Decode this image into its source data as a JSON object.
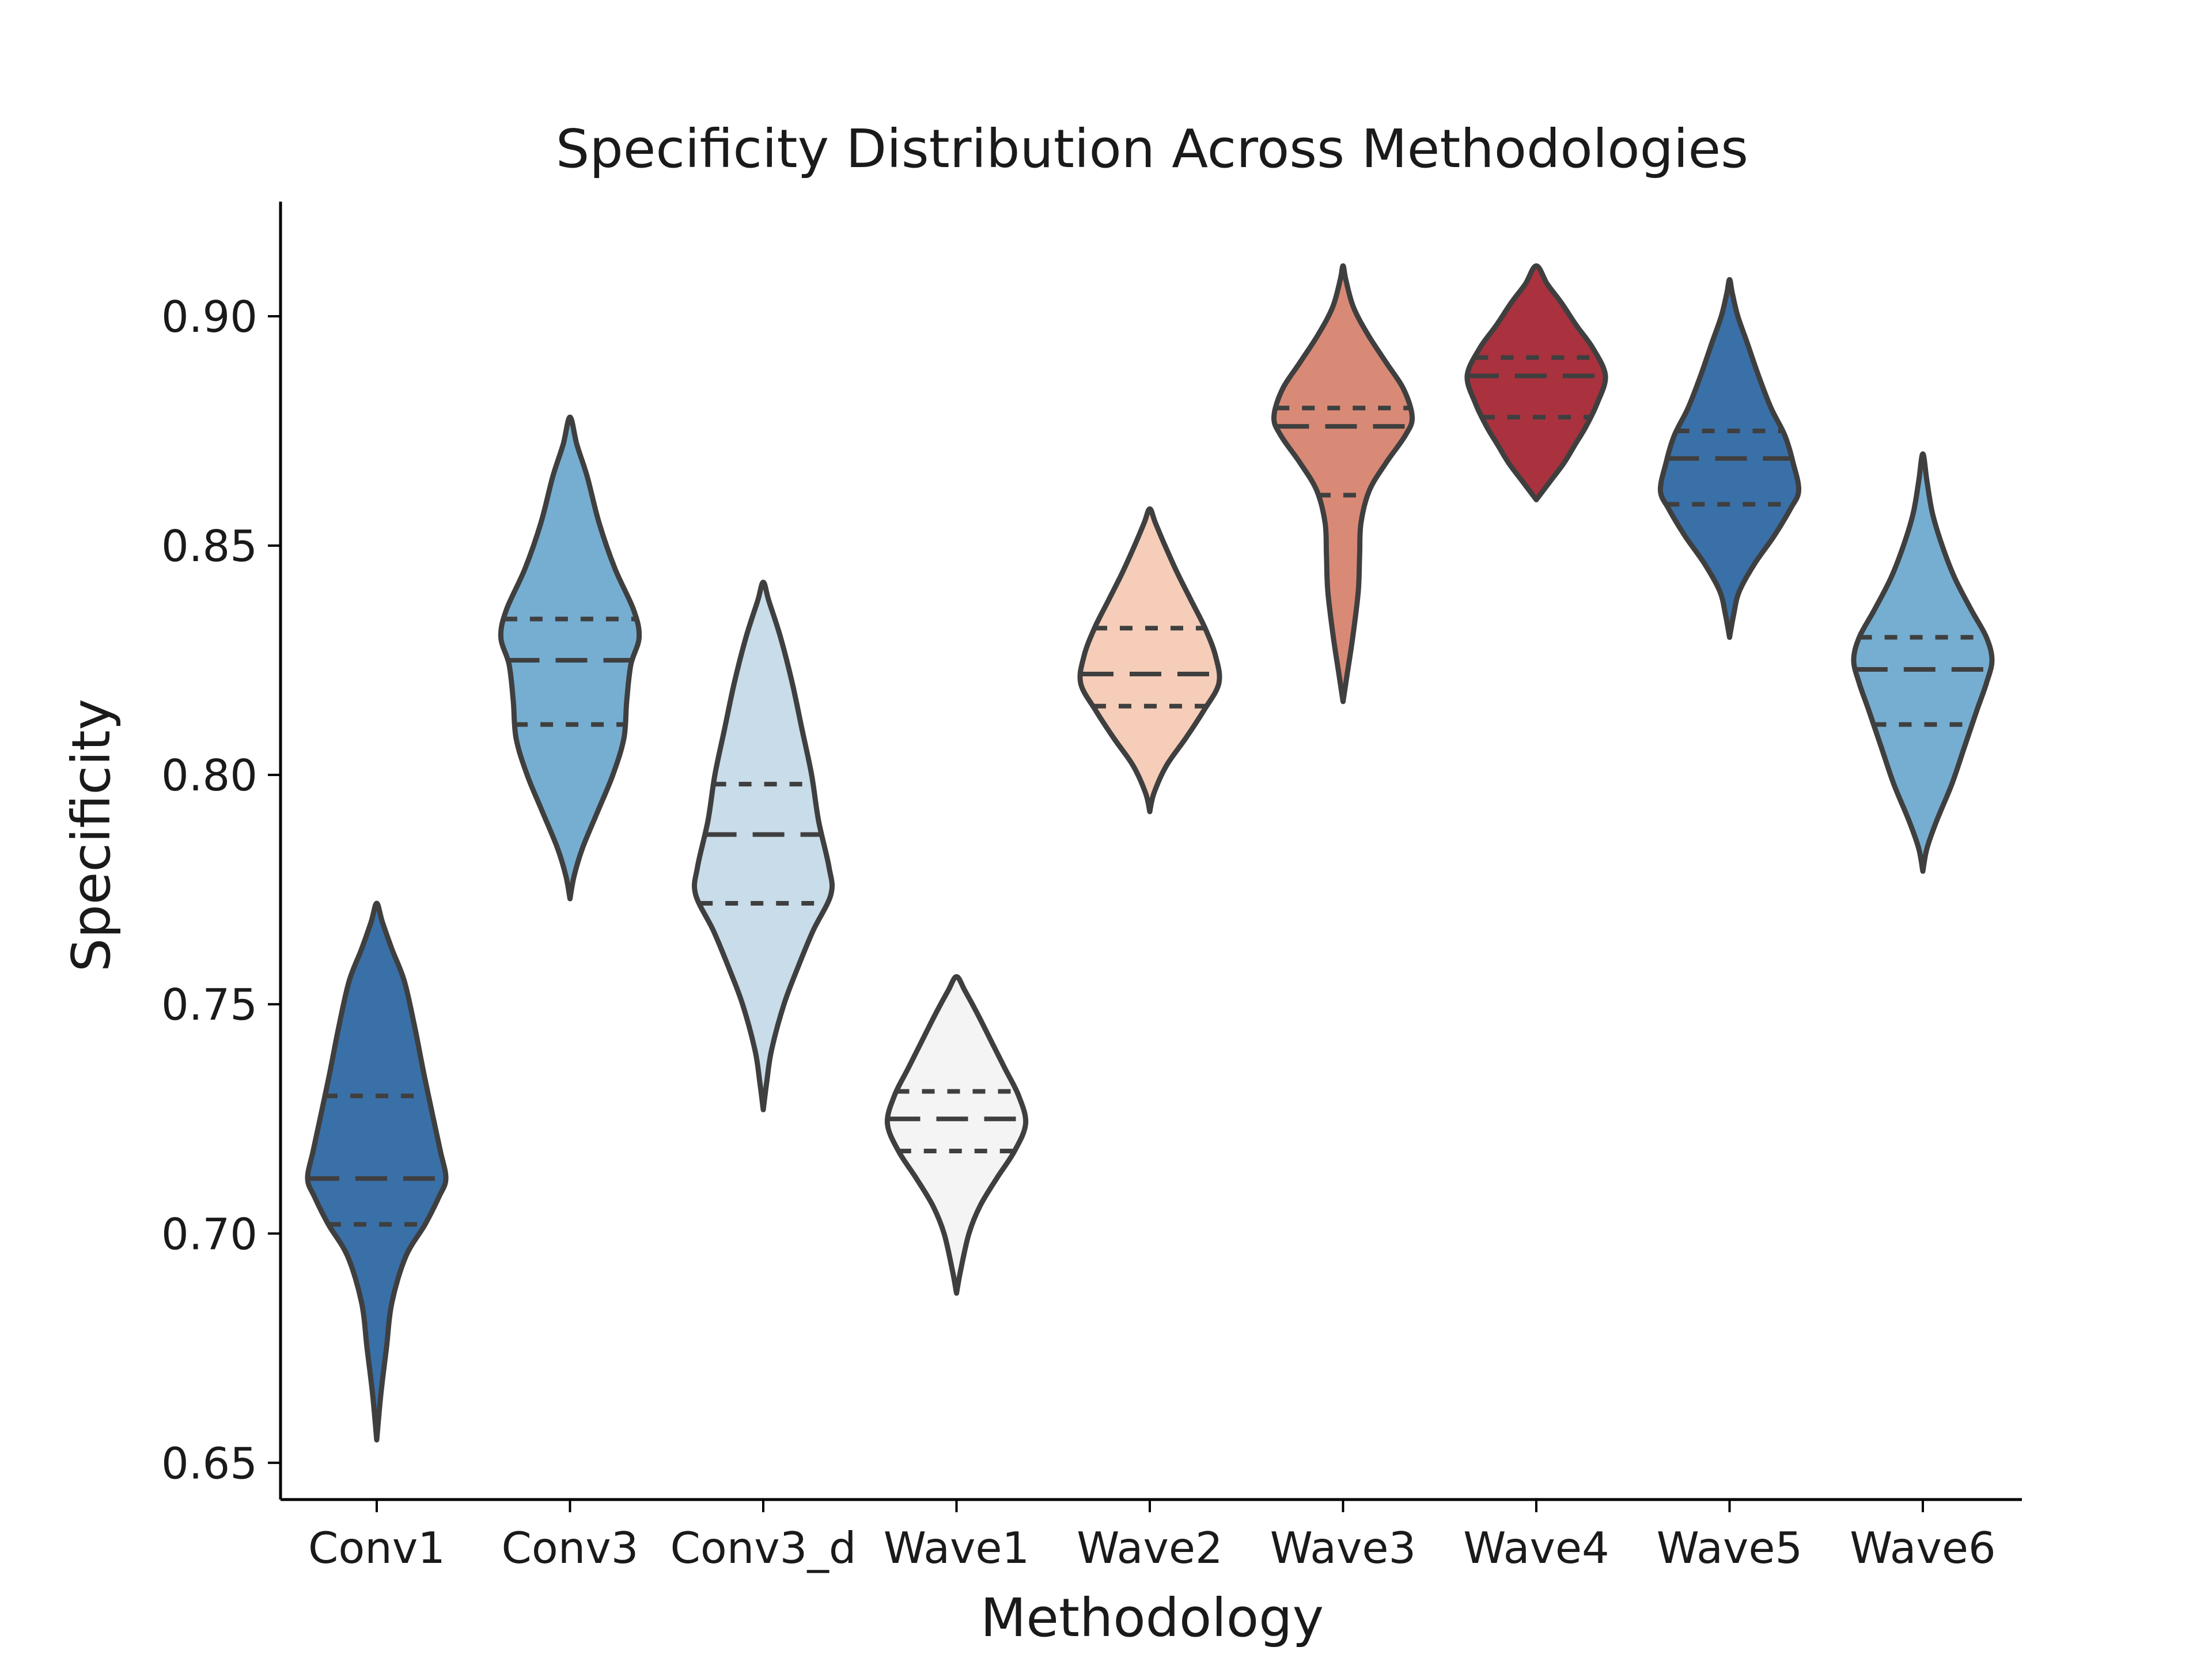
{
  "chart_data": {
    "type": "violin",
    "title": "Specificity Distribution Across Methodologies",
    "xlabel": "Methodology",
    "ylabel": "Specificity",
    "ylim": [
      0.642,
      0.925
    ],
    "yticks": [
      0.65,
      0.7,
      0.75,
      0.8,
      0.85,
      0.9
    ],
    "ytick_labels": [
      "0.65",
      "0.70",
      "0.75",
      "0.80",
      "0.85",
      "0.90"
    ],
    "grid": false,
    "legend": "none",
    "inner": "quartile",
    "categories": [
      "Conv1",
      "Conv3",
      "Conv3_d",
      "Wave1",
      "Wave2",
      "Wave3",
      "Wave4",
      "Wave5",
      "Wave6"
    ],
    "series": [
      {
        "category": "Conv1",
        "color": "#3a70a8",
        "min": 0.655,
        "max": 0.772,
        "q1": 0.702,
        "median": 0.712,
        "q3": 0.73,
        "profile": [
          [
            0.655,
            0.0
          ],
          [
            0.665,
            0.06
          ],
          [
            0.675,
            0.14
          ],
          [
            0.685,
            0.22
          ],
          [
            0.695,
            0.42
          ],
          [
            0.702,
            0.7
          ],
          [
            0.708,
            0.9
          ],
          [
            0.712,
            1.0
          ],
          [
            0.718,
            0.92
          ],
          [
            0.725,
            0.82
          ],
          [
            0.735,
            0.68
          ],
          [
            0.745,
            0.55
          ],
          [
            0.755,
            0.4
          ],
          [
            0.762,
            0.22
          ],
          [
            0.768,
            0.08
          ],
          [
            0.772,
            0.0
          ]
        ]
      },
      {
        "category": "Conv3",
        "color": "#76aed1",
        "min": 0.773,
        "max": 0.878,
        "q1": 0.811,
        "median": 0.825,
        "q3": 0.834,
        "profile": [
          [
            0.773,
            0.0
          ],
          [
            0.778,
            0.06
          ],
          [
            0.784,
            0.18
          ],
          [
            0.792,
            0.4
          ],
          [
            0.8,
            0.62
          ],
          [
            0.808,
            0.78
          ],
          [
            0.816,
            0.82
          ],
          [
            0.824,
            0.88
          ],
          [
            0.83,
            1.0
          ],
          [
            0.836,
            0.92
          ],
          [
            0.845,
            0.65
          ],
          [
            0.855,
            0.42
          ],
          [
            0.865,
            0.25
          ],
          [
            0.872,
            0.1
          ],
          [
            0.878,
            0.0
          ]
        ]
      },
      {
        "category": "Conv3_d",
        "color": "#c8dce9",
        "min": 0.727,
        "max": 0.842,
        "q1": 0.772,
        "median": 0.787,
        "q3": 0.798,
        "profile": [
          [
            0.727,
            0.0
          ],
          [
            0.733,
            0.05
          ],
          [
            0.74,
            0.12
          ],
          [
            0.75,
            0.3
          ],
          [
            0.758,
            0.5
          ],
          [
            0.766,
            0.72
          ],
          [
            0.774,
            0.98
          ],
          [
            0.78,
            0.95
          ],
          [
            0.79,
            0.8
          ],
          [
            0.8,
            0.7
          ],
          [
            0.81,
            0.56
          ],
          [
            0.82,
            0.42
          ],
          [
            0.83,
            0.25
          ],
          [
            0.838,
            0.08
          ],
          [
            0.842,
            0.0
          ]
        ]
      },
      {
        "category": "Wave1",
        "color": "#f4f4f4",
        "min": 0.687,
        "max": 0.756,
        "q1": 0.718,
        "median": 0.725,
        "q3": 0.731,
        "profile": [
          [
            0.687,
            0.0
          ],
          [
            0.692,
            0.06
          ],
          [
            0.7,
            0.18
          ],
          [
            0.706,
            0.34
          ],
          [
            0.712,
            0.58
          ],
          [
            0.718,
            0.84
          ],
          [
            0.724,
            1.0
          ],
          [
            0.73,
            0.9
          ],
          [
            0.736,
            0.7
          ],
          [
            0.742,
            0.5
          ],
          [
            0.748,
            0.3
          ],
          [
            0.753,
            0.12
          ],
          [
            0.756,
            0.0
          ]
        ]
      },
      {
        "category": "Wave2",
        "color": "#f5cdb8",
        "min": 0.792,
        "max": 0.858,
        "q1": 0.815,
        "median": 0.822,
        "q3": 0.832,
        "profile": [
          [
            0.792,
            0.0
          ],
          [
            0.796,
            0.06
          ],
          [
            0.802,
            0.24
          ],
          [
            0.808,
            0.52
          ],
          [
            0.814,
            0.78
          ],
          [
            0.82,
            1.0
          ],
          [
            0.826,
            0.95
          ],
          [
            0.832,
            0.8
          ],
          [
            0.838,
            0.6
          ],
          [
            0.844,
            0.4
          ],
          [
            0.85,
            0.22
          ],
          [
            0.855,
            0.08
          ],
          [
            0.858,
            0.0
          ]
        ]
      },
      {
        "category": "Wave3",
        "color": "#d98a76",
        "min": 0.816,
        "max": 0.911,
        "q1": 0.861,
        "median": 0.876,
        "q3": 0.88,
        "profile": [
          [
            0.816,
            0.0
          ],
          [
            0.822,
            0.06
          ],
          [
            0.83,
            0.14
          ],
          [
            0.84,
            0.22
          ],
          [
            0.848,
            0.24
          ],
          [
            0.855,
            0.26
          ],
          [
            0.862,
            0.38
          ],
          [
            0.868,
            0.62
          ],
          [
            0.874,
            0.9
          ],
          [
            0.878,
            1.0
          ],
          [
            0.884,
            0.88
          ],
          [
            0.89,
            0.62
          ],
          [
            0.896,
            0.36
          ],
          [
            0.902,
            0.15
          ],
          [
            0.908,
            0.04
          ],
          [
            0.911,
            0.0
          ]
        ]
      },
      {
        "category": "Wave4",
        "color": "#a9323e",
        "min": 0.86,
        "max": 0.911,
        "q1": 0.878,
        "median": 0.887,
        "q3": 0.891,
        "profile": [
          [
            0.86,
            0.0
          ],
          [
            0.864,
            0.2
          ],
          [
            0.868,
            0.4
          ],
          [
            0.872,
            0.56
          ],
          [
            0.876,
            0.72
          ],
          [
            0.881,
            0.88
          ],
          [
            0.887,
            1.0
          ],
          [
            0.893,
            0.82
          ],
          [
            0.898,
            0.58
          ],
          [
            0.903,
            0.36
          ],
          [
            0.907,
            0.16
          ],
          [
            0.911,
            0.0
          ]
        ]
      },
      {
        "category": "Wave5",
        "color": "#3a70a8",
        "min": 0.83,
        "max": 0.908,
        "q1": 0.859,
        "median": 0.869,
        "q3": 0.875,
        "profile": [
          [
            0.83,
            0.0
          ],
          [
            0.835,
            0.06
          ],
          [
            0.84,
            0.14
          ],
          [
            0.846,
            0.36
          ],
          [
            0.852,
            0.64
          ],
          [
            0.858,
            0.88
          ],
          [
            0.862,
            1.0
          ],
          [
            0.868,
            0.92
          ],
          [
            0.874,
            0.8
          ],
          [
            0.88,
            0.6
          ],
          [
            0.887,
            0.42
          ],
          [
            0.894,
            0.26
          ],
          [
            0.9,
            0.12
          ],
          [
            0.905,
            0.04
          ],
          [
            0.908,
            0.0
          ]
        ]
      },
      {
        "category": "Wave6",
        "color": "#76aed1",
        "min": 0.779,
        "max": 0.87,
        "q1": 0.811,
        "median": 0.823,
        "q3": 0.83,
        "profile": [
          [
            0.779,
            0.0
          ],
          [
            0.784,
            0.06
          ],
          [
            0.79,
            0.2
          ],
          [
            0.798,
            0.42
          ],
          [
            0.806,
            0.6
          ],
          [
            0.814,
            0.78
          ],
          [
            0.82,
            0.92
          ],
          [
            0.825,
            1.0
          ],
          [
            0.83,
            0.92
          ],
          [
            0.836,
            0.7
          ],
          [
            0.843,
            0.46
          ],
          [
            0.85,
            0.28
          ],
          [
            0.857,
            0.14
          ],
          [
            0.864,
            0.06
          ],
          [
            0.87,
            0.0
          ]
        ]
      }
    ]
  }
}
